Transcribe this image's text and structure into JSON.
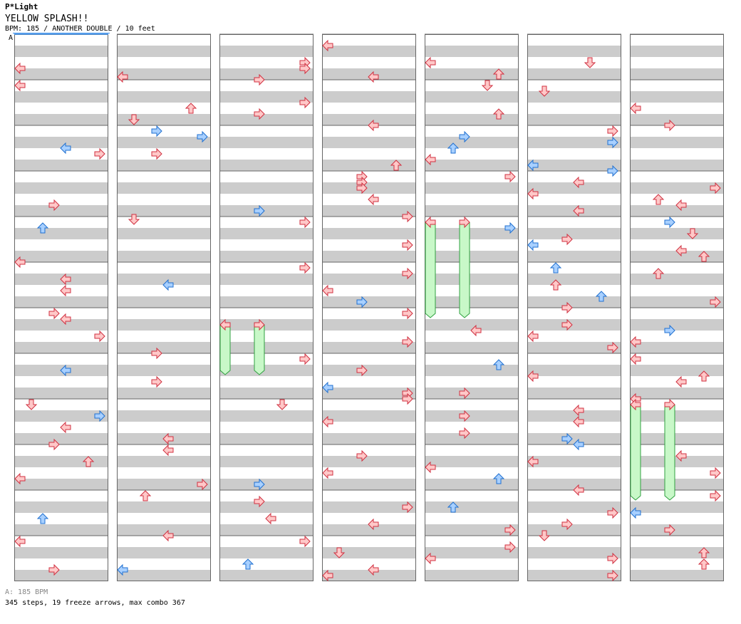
{
  "header": {
    "artist": "P*Light",
    "song": "YELLOW SPLASH!!",
    "info": "BPM: 185 / ANOTHER DOUBLE / 10 feet",
    "tempo_marker": "A"
  },
  "footer": {
    "tempo": "A: 185 BPM",
    "stats": "345 steps, 19 freeze arrows, max combo 367"
  },
  "colors": {
    "stripe_grey": "#cccccc",
    "lane_border": "#666666",
    "note_red_fill": "#ffc8c8",
    "note_red_stroke": "#d03040",
    "note_blue_fill": "#a8d0ff",
    "note_blue_stroke": "#2070d0",
    "freeze_fill": "#c8f8c8",
    "freeze_stroke": "#30a040",
    "tempo_line": "#3c8ee8"
  },
  "chart": {
    "style": "double",
    "columns": 7,
    "measures_per_column": 12,
    "rows_per_measure": 16,
    "notes": [
      [
        4,
        8,
        0,
        "r"
      ],
      [
        2,
        8,
        3,
        "r"
      ],
      [
        3,
        2,
        0,
        "r"
      ],
      [
        5,
        8,
        1,
        "r"
      ],
      [
        0,
        10,
        0,
        "r"
      ],
      [
        2,
        10,
        3,
        "r"
      ],
      [
        1,
        13,
        0,
        "r"
      ],
      [
        3,
        13,
        0,
        "r"
      ],
      [
        2,
        14,
        3,
        "r"
      ],
      [
        4,
        12,
        2,
        "r"
      ],
      [
        0,
        16,
        0,
        "r"
      ],
      [
        4,
        16,
        1,
        "r"
      ],
      [
        5,
        18,
        1,
        "r"
      ],
      [
        2,
        22,
        3,
        "r"
      ],
      [
        6,
        24,
        0,
        "r"
      ],
      [
        1,
        24,
        2,
        "r"
      ],
      [
        2,
        26,
        3,
        "r"
      ],
      [
        4,
        26,
        2,
        "r"
      ],
      [
        8,
        28,
        1,
        "r"
      ],
      [
        3,
        30,
        0,
        "r"
      ],
      [
        6,
        30,
        3,
        "r"
      ],
      [
        5,
        32,
        3,
        "r"
      ],
      [
        1,
        32,
        3,
        "b"
      ],
      [
        1,
        34,
        3,
        "b"
      ],
      [
        4,
        34,
        3,
        "b"
      ],
      [
        5,
        36,
        3,
        "b"
      ],
      [
        4,
        38,
        2,
        "b"
      ],
      [
        7,
        38,
        0,
        "b"
      ],
      [
        1,
        40,
        3,
        "r"
      ],
      [
        7,
        40,
        3,
        "r"
      ],
      [
        4,
        42,
        0,
        "r"
      ],
      [
        3,
        44,
        2,
        "r"
      ],
      [
        5,
        44,
        0,
        "b"
      ],
      [
        5,
        46,
        3,
        "b"
      ],
      [
        3,
        48,
        3,
        "r"
      ],
      [
        4,
        48,
        3,
        "r"
      ],
      [
        3,
        50,
        3,
        "r"
      ],
      [
        5,
        50,
        0,
        "r"
      ],
      [
        3,
        52,
        3,
        "r"
      ],
      [
        6,
        52,
        3,
        "r"
      ],
      [
        5,
        54,
        0,
        "r"
      ],
      [
        3,
        56,
        0,
        "r"
      ],
      [
        6,
        56,
        2,
        "r"
      ],
      [
        6,
        58,
        0,
        "r"
      ],
      [
        7,
        58,
        3,
        "r"
      ],
      [
        5,
        60,
        0,
        "r"
      ],
      [
        2,
        60,
        3,
        "b"
      ],
      [
        3,
        62,
        3,
        "r"
      ],
      [
        1,
        63,
        1,
        "r"
      ],
      [
        2,
        64,
        3,
        "r"
      ],
      [
        6,
        64,
        3,
        "b"
      ],
      [
        4,
        66,
        3,
        "b"
      ],
      [
        7,
        66,
        2,
        "b"
      ],
      [
        6,
        68,
        1,
        "r"
      ],
      [
        5,
        70,
        3,
        "r"
      ],
      [
        3,
        72,
        3,
        "r"
      ],
      [
        5,
        72,
        0,
        "b"
      ],
      [
        6,
        74,
        0,
        "r"
      ],
      [
        4,
        76,
        0,
        "b"
      ],
      [
        6,
        76,
        2,
        "r"
      ],
      [
        7,
        78,
        0,
        "r"
      ],
      [
        2,
        80,
        3,
        "r"
      ],
      [
        5,
        80,
        2,
        "b"
      ],
      [
        3,
        82,
        3,
        "r"
      ],
      [
        6,
        82,
        2,
        "r"
      ],
      [
        7,
        84,
        0,
        "r"
      ],
      [
        5,
        86,
        2,
        "r"
      ],
      [
        1,
        86,
        0,
        "b"
      ],
      [
        3,
        88,
        0,
        "r"
      ],
      [
        7,
        88,
        0,
        "r"
      ],
      [
        4,
        90,
        0,
        "b"
      ],
      [
        5,
        90,
        2,
        "b"
      ],
      [
        3,
        92,
        3,
        "b"
      ],
      [
        6,
        92,
        3,
        "r"
      ],
      [
        5,
        94,
        3,
        "r"
      ],
      [
        3,
        96,
        3,
        "r"
      ],
      [
        7,
        96,
        3,
        "r"
      ],
      [
        7,
        98,
        0,
        "r"
      ],
      [
        5,
        100,
        3,
        "r"
      ],
      [
        4,
        102,
        0,
        "r"
      ],
      [
        6,
        102,
        3,
        "b"
      ],
      [
        0,
        104,
        3,
        "r"
      ],
      [
        5,
        104,
        0,
        "r"
      ],
      [
        3,
        106,
        3,
        "r"
      ],
      [
        6,
        106,
        0,
        "r"
      ],
      [
        5,
        108,
        3,
        "r"
      ],
      [
        1,
        110,
        3,
        "r"
      ],
      [
        2,
        112,
        3,
        "r"
      ],
      [
        6,
        112,
        0,
        "r"
      ],
      [
        4,
        114,
        2,
        "b"
      ],
      [
        3,
        116,
        3,
        "r"
      ],
      [
        7,
        116,
        0,
        "b"
      ],
      [
        5,
        118,
        0,
        "r"
      ],
      [
        6,
        118,
        2,
        "r"
      ],
      [
        1,
        120,
        3,
        "r"
      ],
      [
        6,
        120,
        0,
        "r"
      ],
      [
        3,
        122,
        0,
        "b"
      ],
      [
        3,
        124,
        3,
        "r"
      ],
      [
        4,
        124,
        3,
        "r"
      ],
      [
        3,
        126,
        3,
        "r"
      ],
      [
        6,
        126,
        0,
        "r"
      ],
      [
        2,
        128,
        1,
        "r"
      ],
      [
        7,
        128,
        1,
        "r"
      ],
      [
        5,
        130,
        0,
        "r"
      ],
      [
        4,
        132,
        3,
        "r"
      ],
      [
        7,
        132,
        3,
        "b"
      ],
      [
        3,
        134,
        0,
        "r"
      ],
      [
        5,
        134,
        0,
        "r"
      ],
      [
        6,
        136,
        3,
        "b"
      ],
      [
        7,
        136,
        0,
        "r"
      ],
      [
        4,
        138,
        3,
        "r"
      ],
      [
        1,
        140,
        0,
        "r"
      ],
      [
        5,
        140,
        3,
        "b"
      ],
      [
        5,
        142,
        0,
        "b"
      ],
      [
        7,
        142,
        3,
        "r"
      ],
      [
        1,
        144,
        0,
        "r"
      ],
      [
        3,
        146,
        3,
        "r"
      ],
      [
        6,
        146,
        0,
        "r"
      ],
      [
        5,
        148,
        0,
        "r"
      ],
      [
        7,
        148,
        2,
        "r"
      ],
      [
        4,
        150,
        0,
        "r"
      ],
      [
        6,
        152,
        3,
        "r"
      ],
      [
        3,
        152,
        0,
        "r"
      ],
      [
        4,
        154,
        2,
        "b"
      ],
      [
        7,
        154,
        0,
        "r"
      ],
      [
        1,
        156,
        3,
        "r"
      ],
      [
        2,
        156,
        3,
        "b"
      ],
      [
        5,
        158,
        0,
        "r"
      ],
      [
        1,
        160,
        2,
        "r"
      ],
      [
        6,
        160,
        3,
        "r"
      ],
      [
        2,
        162,
        3,
        "r"
      ],
      [
        3,
        164,
        3,
        "r"
      ],
      [
        4,
        164,
        2,
        "b"
      ],
      [
        5,
        166,
        3,
        "r"
      ],
      [
        6,
        166,
        0,
        "b"
      ],
      [
        2,
        168,
        0,
        "r"
      ],
      [
        7,
        168,
        2,
        "b"
      ],
      [
        3,
        170,
        0,
        "r"
      ],
      [
        5,
        170,
        3,
        "r"
      ],
      [
        4,
        172,
        3,
        "r"
      ],
      [
        6,
        172,
        3,
        "r"
      ],
      [
        1,
        174,
        0,
        "r"
      ],
      [
        5,
        174,
        1,
        "r"
      ],
      [
        2,
        176,
        3,
        "r"
      ],
      [
        7,
        176,
        0,
        "r"
      ],
      [
        4,
        178,
        3,
        "r"
      ],
      [
        3,
        180,
        1,
        "r"
      ],
      [
        6,
        180,
        2,
        "r"
      ],
      [
        4,
        182,
        0,
        "r"
      ],
      [
        5,
        182,
        3,
        "r"
      ],
      [
        2,
        184,
        2,
        "b"
      ],
      [
        6,
        184,
        2,
        "r"
      ],
      [
        1,
        186,
        0,
        "b"
      ],
      [
        3,
        186,
        0,
        "r"
      ],
      [
        7,
        186,
        3,
        "r"
      ],
      [
        5,
        188,
        3,
        "r"
      ],
      [
        3,
        188,
        0,
        "r"
      ],
      [
        4,
        190,
        2,
        "r"
      ],
      [
        7,
        190,
        1,
        "r"
      ]
    ],
    "freezes": [
      [
        2,
        100,
        4,
        0,
        "g"
      ],
      [
        2,
        100,
        4,
        3,
        "g"
      ],
      [
        4,
        64,
        8,
        0,
        "g"
      ],
      [
        4,
        64,
        8,
        3,
        "g"
      ],
      [
        6,
        128,
        8,
        0,
        "g"
      ],
      [
        6,
        128,
        8,
        3,
        "g"
      ]
    ]
  }
}
